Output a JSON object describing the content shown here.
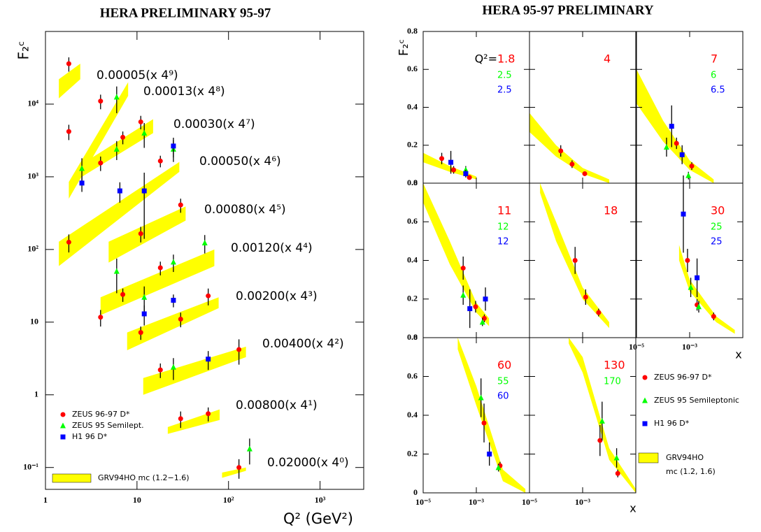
{
  "chart_data": [
    {
      "type": "scatter",
      "title": "HERA PRELIMINARY 95-97",
      "y_label": "F₂ᶜ",
      "x_label": "Q² (GeV²)",
      "xscale": "log",
      "yscale": "log",
      "xlim": [
        1,
        3000
      ],
      "ylim": [
        0.05,
        100000
      ],
      "xticks": [
        1,
        10,
        {
          "value": 100,
          "label": "10²"
        },
        {
          "value": 1000,
          "label": "10³"
        }
      ],
      "yticks": [
        {
          "value": 0.1,
          "label": "10⁻¹"
        },
        1,
        10,
        {
          "value": 100,
          "label": "10²"
        },
        {
          "value": 1000,
          "label": "10³"
        },
        {
          "value": 10000,
          "label": "10⁴"
        }
      ],
      "legend": "bottom-left",
      "series": [
        {
          "name": "ZEUS 96-97 D*",
          "color": "#ff0000",
          "marker": "circle",
          "x": [
            1.8,
            1.8,
            1.8,
            4,
            4,
            4,
            7,
            7,
            11,
            11,
            11,
            18,
            18,
            18,
            30,
            30,
            30,
            60,
            60,
            130,
            130
          ],
          "values": [
            36000,
            4200,
            126,
            11000,
            1550,
            11.7,
            3500,
            24,
            5700,
            165,
            7.2,
            1650,
            56,
            2.2,
            410,
            11,
            0.47,
            23,
            0.55,
            4.2,
            0.1
          ],
          "errors": [
            8000,
            1000,
            35,
            2500,
            350,
            3,
            700,
            5,
            1200,
            40,
            1.5,
            300,
            12,
            0.5,
            90,
            2.5,
            0.12,
            6,
            0.12,
            1.6,
            0.03
          ]
        },
        {
          "name": "ZEUS 95 Semilept.",
          "color": "#00ff00",
          "marker": "triangle",
          "x": [
            2.5,
            6,
            6,
            6,
            12,
            12,
            25,
            25,
            25,
            55,
            170
          ],
          "values": [
            1300,
            12500,
            2400,
            50,
            4000,
            22,
            2400,
            67,
            2.4,
            123,
            0.18
          ],
          "errors": [
            500,
            5000,
            700,
            25,
            1500,
            9,
            800,
            18,
            0.8,
            35,
            0.07
          ]
        },
        {
          "name": "H1 96 D*",
          "color": "#0000ff",
          "marker": "square",
          "x": [
            2.5,
            6.5,
            12,
            12,
            25,
            25,
            60
          ],
          "values": [
            820,
            640,
            640,
            13,
            2650,
            20,
            3.1
          ],
          "errors": [
            200,
            200,
            500,
            4,
            800,
            4,
            0.9
          ]
        }
      ],
      "band_color": "#ffff00",
      "band_label": "GRV94HO mc (1.2−1.6)",
      "bands": [
        {
          "x": [
            1.4,
            2.4
          ],
          "low": [
            12000,
            22000
          ],
          "high": [
            22000,
            36000
          ]
        },
        {
          "x": [
            1.8,
            8
          ],
          "low": [
            500,
            13000
          ],
          "high": [
            850,
            20000
          ]
        },
        {
          "x": [
            2.5,
            15
          ],
          "low": [
            1000,
            4000
          ],
          "high": [
            1500,
            6200
          ]
        },
        {
          "x": [
            1.4,
            29
          ],
          "low": [
            59,
            1170
          ],
          "high": [
            128,
            1600
          ]
        },
        {
          "x": [
            4.9,
            34
          ],
          "low": [
            66,
            250
          ],
          "high": [
            128,
            390
          ]
        },
        {
          "x": [
            4,
            70
          ],
          "low": [
            12.5,
            59
          ],
          "high": [
            22,
            100
          ]
        },
        {
          "x": [
            7.8,
            78
          ],
          "low": [
            4.1,
            15.6
          ],
          "high": [
            7.2,
            22
          ]
        },
        {
          "x": [
            11.7,
            155
          ],
          "low": [
            1,
            3.3
          ],
          "high": [
            1.7,
            4.6
          ]
        },
        {
          "x": [
            21.7,
            80
          ],
          "low": [
            0.29,
            0.45
          ],
          "high": [
            0.36,
            0.63
          ]
        },
        {
          "x": [
            85,
            155
          ],
          "low": [
            0.072,
            0.09
          ],
          "high": [
            0.085,
            0.1
          ]
        }
      ],
      "annotations": [
        "0.00005(x 4⁹)",
        "0.00013(x 4⁸)",
        "0.00030(x 4⁷)",
        "0.00050(x 4⁶)",
        "0.00080(x 4⁵)",
        "0.00120(x 4⁴)",
        "0.00200(x 4³)",
        "0.00400(x 4²)",
        "0.00800(x 4¹)",
        "0.02000(x 4⁰)"
      ]
    },
    {
      "type": "scatter-grid",
      "title": "HERA 95-97 PRELIMINARY",
      "y_label": "F₂ᶜ",
      "x_label": "x",
      "q2_prefix": "Q²=",
      "xscale": "log",
      "xlim": [
        1e-05,
        0.1
      ],
      "ylim": [
        0,
        0.8
      ],
      "xticks": [
        {
          "value": 1e-05,
          "label": "10⁻⁵"
        },
        {
          "value": 0.001,
          "label": "10⁻³"
        }
      ],
      "yticks": [
        0,
        0.2,
        0.4,
        0.6,
        0.8
      ],
      "legend_entries": [
        {
          "name": "ZEUS 96-97 D*",
          "color": "#ff0000",
          "marker": "circle"
        },
        {
          "name": "ZEUS 95 Semileptonic",
          "color": "#00ff00",
          "marker": "triangle"
        },
        {
          "name": "H1 96 D*",
          "color": "#0000ff",
          "marker": "square"
        }
      ],
      "band_color": "#ffff00",
      "band_label": [
        "GRV94HO",
        "mc (1.2, 1.6)"
      ],
      "panels": [
        {
          "q2": [
            1.8,
            2.5,
            2.5
          ],
          "series": [
            {
              "x": [
                5e-05,
                0.00014,
                0.00055
              ],
              "values": [
                0.13,
                0.07,
                0.03
              ],
              "errors": [
                0.03,
                0.02,
                0.01
              ]
            },
            {
              "x": [
                0.0004
              ],
              "values": [
                0.07
              ],
              "errors": [
                0.02
              ]
            },
            {
              "x": [
                0.00011,
                0.0004
              ],
              "values": [
                0.11,
                0.05
              ],
              "errors": [
                0.06,
                0.02
              ]
            }
          ],
          "band": {
            "x": [
              1e-05,
              0.0001,
              0.001
            ],
            "low": [
              0.11,
              0.06,
              0.02
            ],
            "high": [
              0.16,
              0.09,
              0.035
            ]
          }
        },
        {
          "q2": [
            4
          ],
          "series": [
            {
              "x": [
                0.00015,
                0.0004,
                0.0012
              ],
              "values": [
                0.17,
                0.1,
                0.05
              ],
              "errors": [
                0.03,
                0.02,
                0.01
              ]
            }
          ],
          "band": {
            "x": [
              1e-05,
              0.0001,
              0.001,
              0.01
            ],
            "low": [
              0.27,
              0.14,
              0.05,
              0
            ],
            "high": [
              0.37,
              0.2,
              0.08,
              0.02
            ]
          }
        },
        {
          "q2": [
            7,
            6,
            6.5
          ],
          "series": [
            {
              "x": [
                0.00032,
                0.0012
              ],
              "values": [
                0.21,
                0.09
              ],
              "errors": [
                0.03,
                0.02
              ]
            },
            {
              "x": [
                0.000135,
                0.0009
              ],
              "values": [
                0.19,
                0.04
              ],
              "errors": [
                0.05,
                0.02
              ]
            },
            {
              "x": [
                0.00021,
                0.00052
              ],
              "values": [
                0.3,
                0.15
              ],
              "errors": [
                0.11,
                0.05
              ]
            }
          ],
          "band": {
            "x": [
              1e-05,
              0.0001,
              0.001,
              0.008
            ],
            "low": [
              0.42,
              0.22,
              0.07,
              0
            ],
            "high": [
              0.6,
              0.33,
              0.12,
              0.02
            ]
          }
        },
        {
          "q2": [
            11,
            12,
            12
          ],
          "series": [
            {
              "x": [
                0.00032,
                0.00094,
                0.002
              ],
              "values": [
                0.36,
                0.16,
                0.1
              ],
              "errors": [
                0.06,
                0.03,
                0.02
              ]
            },
            {
              "x": [
                0.00032,
                0.0017
              ],
              "values": [
                0.22,
                0.08
              ],
              "errors": [
                0.05,
                0.02
              ]
            },
            {
              "x": [
                0.00057,
                0.0022
              ],
              "values": [
                0.15,
                0.2
              ],
              "errors": [
                0.1,
                0.06
              ]
            }
          ],
          "band": {
            "x": [
              1e-05,
              0.0001,
              0.001,
              0.003
            ],
            "low": [
              0.7,
              0.38,
              0.13,
              0.06
            ],
            "high": [
              0.8,
              0.5,
              0.18,
              0.1
            ]
          }
        },
        {
          "q2": [
            18
          ],
          "series": [
            {
              "x": [
                0.00052,
                0.0013,
                0.004
              ],
              "values": [
                0.4,
                0.21,
                0.13
              ],
              "errors": [
                0.07,
                0.04,
                0.02
              ]
            }
          ],
          "band": {
            "x": [
              2.5e-05,
              0.0001,
              0.001,
              0.01
            ],
            "low": [
              0.75,
              0.5,
              0.2,
              0.05
            ],
            "high": [
              0.8,
              0.6,
              0.26,
              0.08
            ]
          }
        },
        {
          "q2": [
            30,
            25,
            25
          ],
          "series": [
            {
              "x": [
                0.00083,
                0.0019,
                0.008
              ],
              "values": [
                0.4,
                0.17,
                0.11
              ],
              "errors": [
                0.06,
                0.03,
                0.02
              ]
            },
            {
              "x": [
                0.0011,
                0.0022
              ],
              "values": [
                0.26,
                0.16
              ],
              "errors": [
                0.05,
                0.03
              ]
            },
            {
              "x": [
                0.00058,
                0.0019
              ],
              "values": [
                0.64,
                0.31
              ],
              "errors": [
                0.2,
                0.1
              ]
            }
          ],
          "band": {
            "x": [
              0.0004,
              0.001,
              0.01,
              0.05
            ],
            "low": [
              0.4,
              0.24,
              0.08,
              0.02
            ],
            "high": [
              0.48,
              0.3,
              0.11,
              0.04
            ]
          }
        },
        {
          "q2": [
            60,
            55,
            60
          ],
          "series": [
            {
              "x": [
                0.00195,
                0.0078
              ],
              "values": [
                0.36,
                0.14
              ],
              "errors": [
                0.1,
                0.02
              ]
            },
            {
              "x": [
                0.0015,
                0.0068
              ],
              "values": [
                0.49,
                0.13
              ],
              "errors": [
                0.1,
                0.02
              ]
            },
            {
              "x": [
                0.0031
              ],
              "values": [
                0.2
              ],
              "errors": [
                0.06
              ]
            }
          ],
          "band": {
            "x": [
              0.0002,
              0.001,
              0.01,
              0.07
            ],
            "low": [
              0.74,
              0.45,
              0.06,
              0
            ],
            "high": [
              0.8,
              0.55,
              0.12,
              0.02
            ]
          }
        },
        {
          "q2": [
            130,
            170
          ],
          "series": [
            {
              "x": [
                0.0045,
                0.021
              ],
              "values": [
                0.27,
                0.1
              ],
              "errors": [
                0.08,
                0.02
              ]
            },
            {
              "x": [
                0.0054,
                0.019
              ],
              "values": [
                0.37,
                0.18
              ],
              "errors": [
                0.1,
                0.05
              ]
            }
          ],
          "band": {
            "x": [
              0.0003,
              0.001,
              0.01,
              0.1
            ],
            "low": [
              0.77,
              0.62,
              0.17,
              0
            ],
            "high": [
              0.8,
              0.7,
              0.23,
              0.02
            ]
          }
        }
      ]
    }
  ]
}
